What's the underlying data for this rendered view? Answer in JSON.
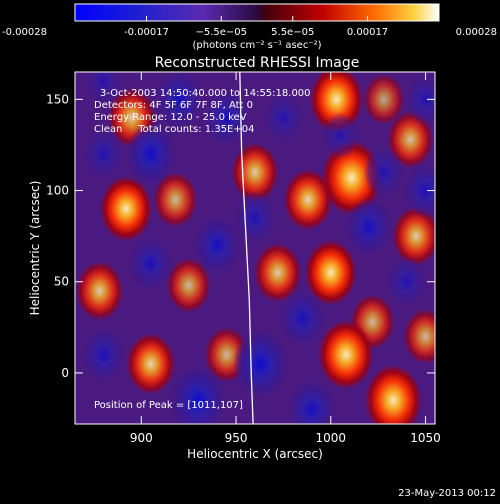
{
  "chart_data": {
    "type": "heatmap",
    "title": "Reconstructed RHESSI Image",
    "xlabel": "Heliocentric X (arcsec)",
    "ylabel": "Heliocentric Y (arcsec)",
    "xlim": [
      865,
      1055
    ],
    "ylim": [
      -28,
      165
    ],
    "x_ticks": [
      900,
      950,
      1000,
      1050
    ],
    "y_ticks": [
      0,
      50,
      100,
      150
    ],
    "colorbar": {
      "ticks": [
        "-0.00028",
        "-0.00017",
        "−5.5e−05",
        "5.5e−05",
        "0.00017",
        "0.00028"
      ],
      "tick_values": [
        -0.00028,
        -0.00017,
        -5.5e-05,
        5.5e-05,
        0.00017,
        0.00028
      ],
      "range": [
        -0.00028,
        0.00028
      ],
      "units": "(photons cm⁻² s⁻¹ asec⁻²)"
    },
    "annotations": {
      "time": "3-Oct-2003 14:50:40.000 to 14:55:18.000",
      "detectors": "Detectors: 4F 5F 6F 7F 8F, Att 0",
      "energy": "Energy Range: 12.0 - 25.0 keV",
      "clean": "Clean     Total counts: 1.35E+04",
      "peak": "Position of Peak = [1011,107]"
    },
    "peak_position": [
      1011,
      107
    ],
    "limb_curve": [
      [
        952,
        165
      ],
      [
        953,
        120
      ],
      [
        955,
        80
      ],
      [
        957,
        40
      ],
      [
        958,
        0
      ],
      [
        959,
        -28
      ]
    ],
    "blobs": [
      {
        "x": 1011,
        "y": 107,
        "a": 1.0
      },
      {
        "x": 1003,
        "y": 150,
        "a": 0.8
      },
      {
        "x": 895,
        "y": 140,
        "a": 0.6
      },
      {
        "x": 892,
        "y": 90,
        "a": 0.75
      },
      {
        "x": 988,
        "y": 95,
        "a": 0.65
      },
      {
        "x": 960,
        "y": 110,
        "a": 0.6
      },
      {
        "x": 1042,
        "y": 128,
        "a": 0.55
      },
      {
        "x": 1045,
        "y": 75,
        "a": 0.6
      },
      {
        "x": 918,
        "y": 95,
        "a": 0.5
      },
      {
        "x": 878,
        "y": 45,
        "a": 0.6
      },
      {
        "x": 925,
        "y": 48,
        "a": 0.5
      },
      {
        "x": 1000,
        "y": 55,
        "a": 0.75
      },
      {
        "x": 972,
        "y": 55,
        "a": 0.6
      },
      {
        "x": 1022,
        "y": 28,
        "a": 0.5
      },
      {
        "x": 905,
        "y": 5,
        "a": 0.65
      },
      {
        "x": 945,
        "y": 10,
        "a": 0.5
      },
      {
        "x": 1008,
        "y": 10,
        "a": 0.85
      },
      {
        "x": 1033,
        "y": -15,
        "a": 0.9
      },
      {
        "x": 1050,
        "y": 20,
        "a": 0.5
      },
      {
        "x": 1028,
        "y": 150,
        "a": 0.4
      },
      {
        "x": 920,
        "y": 150,
        "a": -0.6
      },
      {
        "x": 880,
        "y": 120,
        "a": -0.4
      },
      {
        "x": 945,
        "y": 140,
        "a": -0.55
      },
      {
        "x": 975,
        "y": 140,
        "a": -0.35
      },
      {
        "x": 905,
        "y": 120,
        "a": -0.7
      },
      {
        "x": 940,
        "y": 70,
        "a": -0.6
      },
      {
        "x": 905,
        "y": 60,
        "a": -0.5
      },
      {
        "x": 960,
        "y": 85,
        "a": -0.45
      },
      {
        "x": 1020,
        "y": 80,
        "a": -0.6
      },
      {
        "x": 1028,
        "y": 110,
        "a": -0.4
      },
      {
        "x": 1050,
        "y": 100,
        "a": -0.5
      },
      {
        "x": 985,
        "y": 30,
        "a": -0.55
      },
      {
        "x": 963,
        "y": 5,
        "a": -0.85
      },
      {
        "x": 930,
        "y": -15,
        "a": -0.9
      },
      {
        "x": 990,
        "y": -20,
        "a": -0.6
      },
      {
        "x": 880,
        "y": 10,
        "a": -0.5
      },
      {
        "x": 1040,
        "y": 50,
        "a": -0.4
      },
      {
        "x": 1050,
        "y": 150,
        "a": -0.4
      },
      {
        "x": 880,
        "y": 160,
        "a": -0.3
      },
      {
        "x": 1005,
        "y": 130,
        "a": -0.3
      }
    ]
  },
  "footer": {
    "date": "23-May-2013 00:12"
  }
}
